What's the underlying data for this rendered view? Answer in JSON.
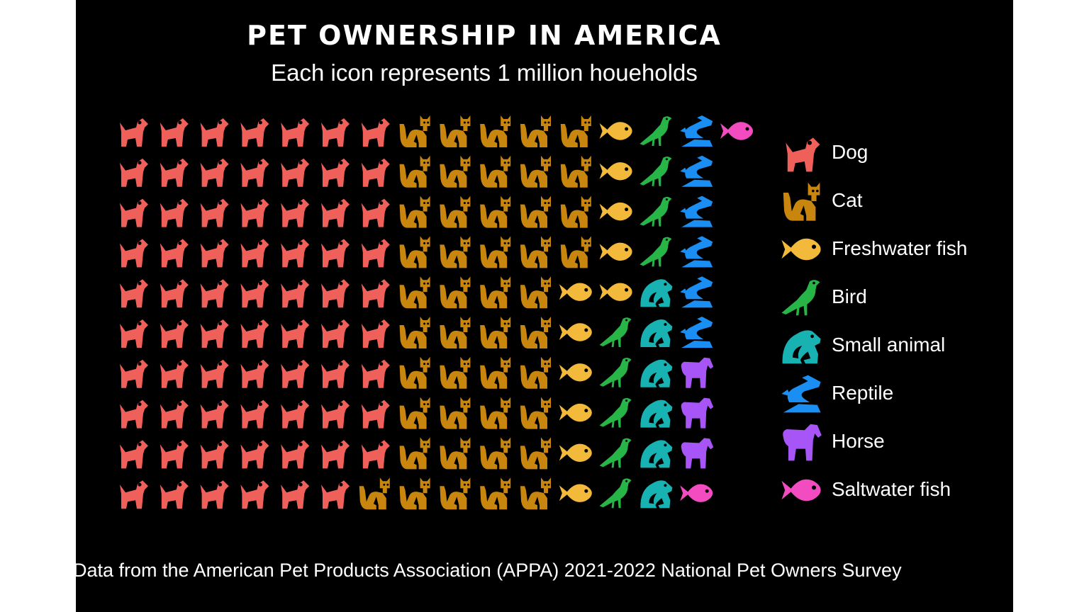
{
  "chart_data": {
    "type": "pictogram",
    "title": "PET OWNERSHIP IN AMERICA",
    "subtitle": "Each icon represents 1 million houeholds",
    "unit": "1 million households per icon",
    "categories": [
      {
        "name": "Dog",
        "value": 69,
        "color": "#f0605a",
        "icon": "dog-icon"
      },
      {
        "name": "Cat",
        "value": 45,
        "color": "#c8860f",
        "icon": "cat-icon"
      },
      {
        "name": "Freshwater fish",
        "value": 11,
        "color": "#f2b93b",
        "icon": "fish-icon"
      },
      {
        "name": "Bird",
        "value": 9,
        "color": "#27b548",
        "icon": "bird-icon"
      },
      {
        "name": "Small animal",
        "value": 6,
        "color": "#19b2b3",
        "icon": "frog-icon"
      },
      {
        "name": "Reptile",
        "value": 6,
        "color": "#1b8ef3",
        "icon": "dragon-icon"
      },
      {
        "name": "Horse",
        "value": 3,
        "color": "#a855f7",
        "icon": "horse-icon"
      },
      {
        "name": "Saltwater fish",
        "value": 2,
        "color": "#f24cc0",
        "icon": "fish-icon"
      }
    ],
    "grid_rows": 10,
    "source": "Data from the American Pet Products Association (APPA) 2021-2022 National Pet Owners Survey"
  }
}
